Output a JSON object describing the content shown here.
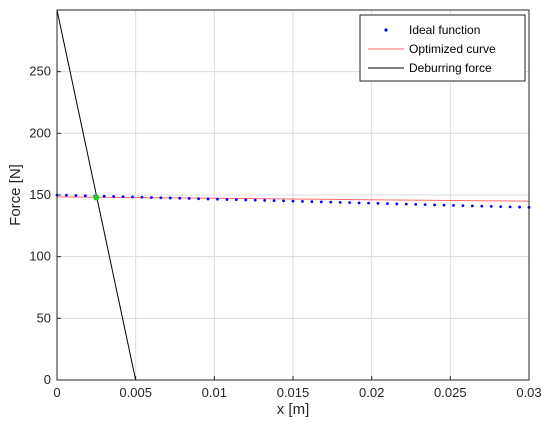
{
  "chart_data": {
    "type": "line",
    "xlabel": "x [m]",
    "ylabel": "Force [N]",
    "xlim": [
      0,
      0.03
    ],
    "ylim": [
      0,
      300
    ],
    "grid": true,
    "legend_position": "top-right",
    "x_ticks": [
      {
        "value": 0,
        "label": "0"
      },
      {
        "value": 0.005,
        "label": "0.005"
      },
      {
        "value": 0.01,
        "label": "0.01"
      },
      {
        "value": 0.015,
        "label": "0.015"
      },
      {
        "value": 0.02,
        "label": "0.02"
      },
      {
        "value": 0.025,
        "label": "0.025"
      },
      {
        "value": 0.03,
        "label": "0.03"
      }
    ],
    "y_ticks": [
      {
        "value": 0,
        "label": "0"
      },
      {
        "value": 50,
        "label": "50"
      },
      {
        "value": 100,
        "label": "100"
      },
      {
        "value": 150,
        "label": "150"
      },
      {
        "value": 200,
        "label": "200"
      },
      {
        "value": 250,
        "label": "250"
      }
    ],
    "series": [
      {
        "name": "Ideal function",
        "style": "dots",
        "color": "#0000ff",
        "x": [
          0,
          0.0006,
          0.0012,
          0.0018,
          0.0024,
          0.003,
          0.0036,
          0.0042,
          0.0048,
          0.0054,
          0.006,
          0.0066,
          0.0072,
          0.0078,
          0.0084,
          0.009,
          0.0096,
          0.0102,
          0.0108,
          0.0114,
          0.012,
          0.0126,
          0.0132,
          0.0138,
          0.0144,
          0.015,
          0.0156,
          0.0162,
          0.0168,
          0.0174,
          0.018,
          0.0186,
          0.0192,
          0.0198,
          0.0204,
          0.021,
          0.0216,
          0.0222,
          0.0228,
          0.0234,
          0.024,
          0.0246,
          0.0252,
          0.0258,
          0.0264,
          0.027,
          0.0276,
          0.0282,
          0.0288,
          0.0294,
          0.03
        ],
        "y": [
          150,
          149.8,
          149.6,
          149.4,
          149.2,
          149,
          148.8,
          148.6,
          148.4,
          148.2,
          148,
          147.8,
          147.6,
          147.4,
          147.2,
          147,
          146.8,
          146.6,
          146.4,
          146.2,
          146,
          145.8,
          145.6,
          145.4,
          145.2,
          145,
          144.8,
          144.6,
          144.4,
          144.2,
          144,
          143.8,
          143.6,
          143.4,
          143.2,
          143,
          142.8,
          142.6,
          142.4,
          142.2,
          142,
          141.8,
          141.6,
          141.4,
          141.2,
          141,
          140.8,
          140.6,
          140.4,
          140.2,
          140
        ]
      },
      {
        "name": "Optimized curve",
        "style": "line",
        "color": "#ff6b6b",
        "x": [
          0,
          0.03
        ],
        "y": [
          148.5,
          145
        ]
      },
      {
        "name": "Deburring force",
        "style": "line",
        "color": "#000000",
        "x": [
          0,
          0.005
        ],
        "y": [
          300,
          0
        ]
      }
    ],
    "marker": {
      "x": 0.0025,
      "y": 148,
      "color": "#22cc22"
    }
  }
}
